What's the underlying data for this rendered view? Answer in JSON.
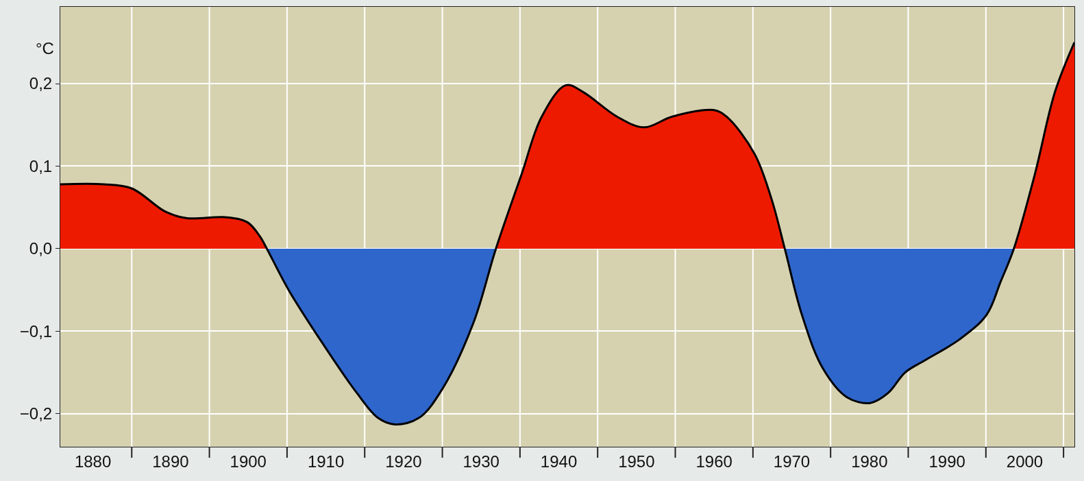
{
  "chart_data": {
    "type": "area",
    "ylabel": "°C",
    "xlim": [
      1875.8,
      2006.4
    ],
    "ylim": [
      -0.24,
      0.293
    ],
    "xticks": [
      {
        "value": 1880,
        "label": "1880"
      },
      {
        "value": 1885,
        "label": null
      },
      {
        "value": 1890,
        "label": "1890"
      },
      {
        "value": 1895,
        "label": null
      },
      {
        "value": 1900,
        "label": "1900"
      },
      {
        "value": 1905,
        "label": null
      },
      {
        "value": 1910,
        "label": "1910"
      },
      {
        "value": 1915,
        "label": null
      },
      {
        "value": 1920,
        "label": "1920"
      },
      {
        "value": 1925,
        "label": null
      },
      {
        "value": 1930,
        "label": "1930"
      },
      {
        "value": 1935,
        "label": null
      },
      {
        "value": 1940,
        "label": "1940"
      },
      {
        "value": 1945,
        "label": null
      },
      {
        "value": 1950,
        "label": "1950"
      },
      {
        "value": 1955,
        "label": null
      },
      {
        "value": 1960,
        "label": "1960"
      },
      {
        "value": 1965,
        "label": null
      },
      {
        "value": 1970,
        "label": "1970"
      },
      {
        "value": 1975,
        "label": null
      },
      {
        "value": 1980,
        "label": "1980"
      },
      {
        "value": 1985,
        "label": null
      },
      {
        "value": 1990,
        "label": "1990"
      },
      {
        "value": 1995,
        "label": null
      },
      {
        "value": 2000,
        "label": "2000"
      },
      {
        "value": 2005,
        "label": null
      }
    ],
    "yticks": [
      {
        "value": -0.2,
        "label": "−0,2"
      },
      {
        "value": -0.1,
        "label": "−0,1"
      },
      {
        "value": 0,
        "label": "0,0"
      },
      {
        "value": 0.1,
        "label": "0,1"
      },
      {
        "value": 0.2,
        "label": "0,2"
      }
    ],
    "grid": true,
    "series": [
      {
        "color": "#ee1a00",
        "x": [
          1875.8,
          1881.4,
          1885,
          1889.3,
          1892,
          1897.3,
          1899.9,
          1901.5,
          1902.4,
          1931.9,
          1935.2,
          1937.8,
          1940.9,
          1943.1,
          1947.5,
          1951,
          1954.6,
          1959.9,
          1961.6,
          1965.2,
          1967.4,
          1969.1,
          1998.6,
          2001.3,
          2003.9,
          2006.4
        ],
        "values": [
          0.078,
          0.078,
          0.073,
          0.045,
          0.037,
          0.038,
          0.032,
          0.015,
          0.0,
          0.0,
          0.09,
          0.16,
          0.198,
          0.19,
          0.16,
          0.147,
          0.16,
          0.168,
          0.16,
          0.115,
          0.06,
          0.0,
          0.0,
          0.09,
          0.19,
          0.25
        ]
      },
      {
        "color": "#2f66cc",
        "x": [
          1902.4,
          1905.2,
          1909.6,
          1914,
          1916.7,
          1918.9,
          1922,
          1925,
          1929,
          1931.9,
          1969.1,
          1971.3,
          1974,
          1977.1,
          1980.1,
          1982.4,
          1984.6,
          1987.2,
          1991.6,
          1995.1,
          1996.9,
          1998.6
        ],
        "values": [
          0.0,
          -0.05,
          -0.115,
          -0.175,
          -0.205,
          -0.213,
          -0.205,
          -0.17,
          -0.09,
          0.0,
          0.0,
          -0.08,
          -0.145,
          -0.18,
          -0.187,
          -0.175,
          -0.15,
          -0.135,
          -0.11,
          -0.08,
          -0.04,
          0.0
        ]
      },
      {
        "type": "line",
        "color": "#000000",
        "x": [
          1875.8,
          1881.4,
          1885,
          1889.3,
          1892,
          1897.3,
          1899.9,
          1901.5,
          1902.4,
          1905.2,
          1909.6,
          1914,
          1916.7,
          1918.9,
          1922,
          1925,
          1929,
          1931.9,
          1935.2,
          1937.8,
          1940.9,
          1943.1,
          1947.5,
          1951,
          1954.6,
          1959.9,
          1961.6,
          1965.2,
          1967.4,
          1969.1,
          1971.3,
          1974,
          1977.1,
          1980.1,
          1982.4,
          1984.6,
          1987.2,
          1991.6,
          1995.1,
          1996.9,
          1998.6,
          2001.3,
          2003.9,
          2006.4
        ],
        "values": [
          0.078,
          0.078,
          0.073,
          0.045,
          0.037,
          0.038,
          0.032,
          0.015,
          0.0,
          -0.05,
          -0.115,
          -0.175,
          -0.205,
          -0.213,
          -0.205,
          -0.17,
          -0.09,
          0.0,
          0.09,
          0.16,
          0.198,
          0.19,
          0.16,
          0.147,
          0.16,
          0.168,
          0.16,
          0.115,
          0.06,
          0.0,
          -0.08,
          -0.145,
          -0.18,
          -0.187,
          -0.175,
          -0.15,
          -0.135,
          -0.11,
          -0.08,
          -0.04,
          0.0,
          0.09,
          0.19,
          0.25
        ]
      }
    ]
  }
}
